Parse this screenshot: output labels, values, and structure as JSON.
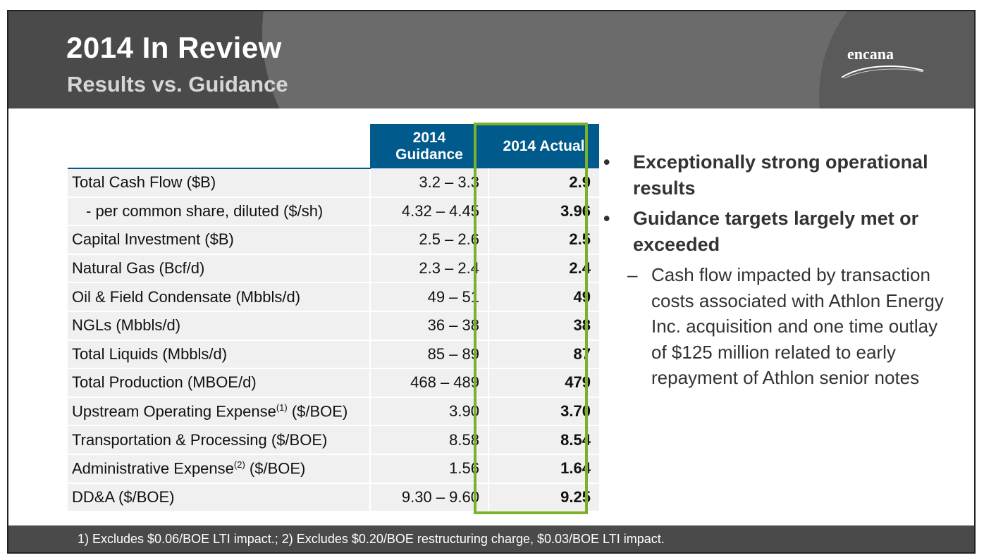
{
  "header": {
    "title": "2014 In Review",
    "subtitle": "Results vs. Guidance",
    "logo_text": "encana"
  },
  "table": {
    "col_guidance": "2014 Guidance",
    "col_actual": "2014 Actual",
    "rows": [
      {
        "label": "Total Cash Flow ($B)",
        "guidance": "3.2 – 3.3",
        "actual": "2.9"
      },
      {
        "label": "- per common share, diluted ($/sh)",
        "guidance": "4.32 – 4.45",
        "actual": "3.96"
      },
      {
        "label": "Capital Investment ($B)",
        "guidance": "2.5 – 2.6",
        "actual": "2.5"
      },
      {
        "label": "Natural Gas (Bcf/d)",
        "guidance": "2.3 – 2.4",
        "actual": "2.4"
      },
      {
        "label": "Oil & Field Condensate (Mbbls/d)",
        "guidance": "49 – 51",
        "actual": "49"
      },
      {
        "label": "NGLs (Mbbls/d)",
        "guidance": "36 – 38",
        "actual": "38"
      },
      {
        "label": "Total Liquids (Mbbls/d)",
        "guidance": "85 – 89",
        "actual": "87"
      },
      {
        "label": "Total Production (MBOE/d)",
        "guidance": "468 – 489",
        "actual": "479"
      },
      {
        "label": "Upstream Operating Expense",
        "sup": "(1)",
        "label_suffix": " ($/BOE)",
        "guidance": "3.90",
        "actual": "3.70"
      },
      {
        "label": "Transportation & Processing ($/BOE)",
        "guidance": "8.58",
        "actual": "8.54"
      },
      {
        "label": "Administrative Expense",
        "sup": "(2)",
        "label_suffix": " ($/BOE)",
        "guidance": "1.56",
        "actual": "1.64"
      },
      {
        "label": "DD&A ($/BOE)",
        "guidance": "9.30 – 9.60",
        "actual": "9.25"
      }
    ]
  },
  "bullets": {
    "items": [
      {
        "text": "Exceptionally strong operational results"
      },
      {
        "text": "Guidance targets largely met or exceeded"
      }
    ],
    "sub": "Cash flow impacted by transaction costs associated with Athlon Energy Inc. acquisition and one time outlay of $125 million related to early repayment of Athlon senior notes",
    "bullet_glyph": "•",
    "dash_glyph": "–"
  },
  "footer": {
    "note": "1) Excludes $0.06/BOE LTI impact.; 2) Excludes $0.20/BOE restructuring charge, $0.03/BOE LTI impact."
  },
  "colors": {
    "header_bg": "#4a4a4a",
    "table_header": "#005a8b",
    "highlight": "#7ab02a"
  }
}
